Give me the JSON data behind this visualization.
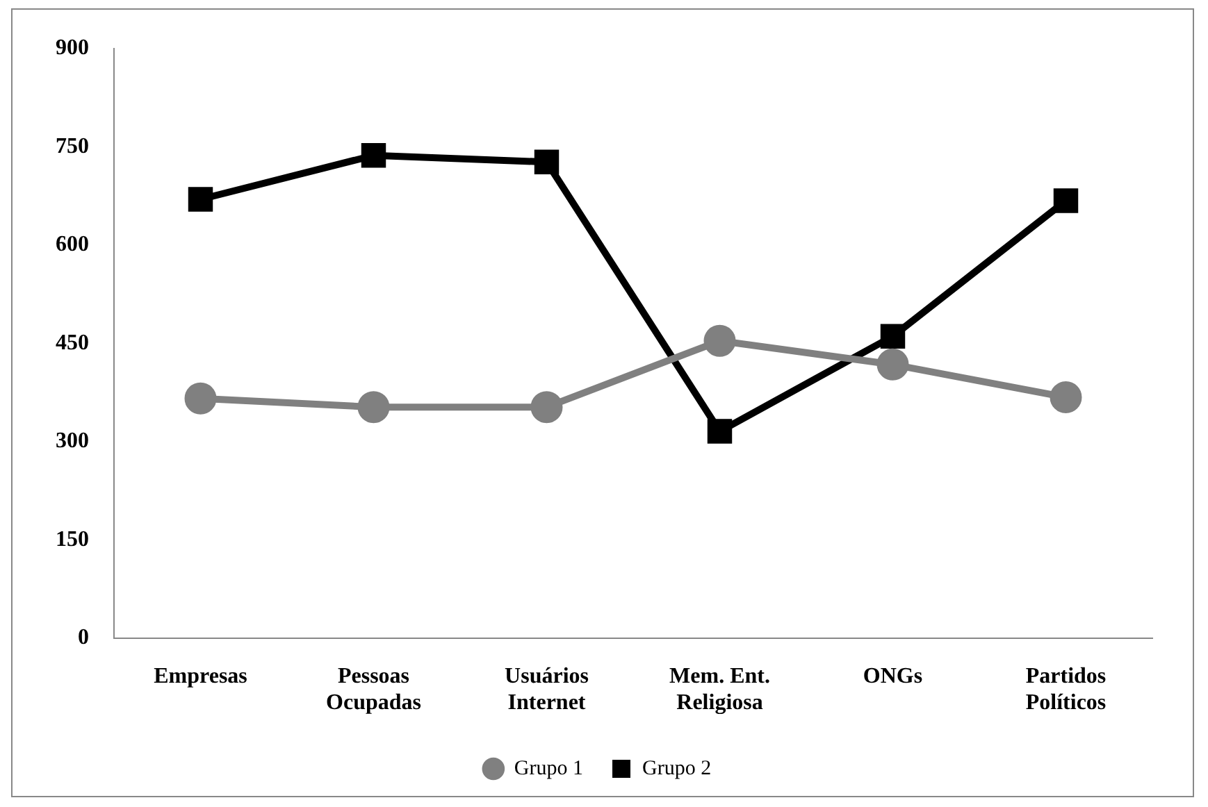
{
  "chart_data": {
    "type": "line",
    "categories": [
      "Empresas",
      "Pessoas Ocupadas",
      "Usuários Internet",
      "Mem. Ent. Religiosa",
      "ONGs",
      "Partidos Políticos"
    ],
    "series": [
      {
        "name": "Grupo 1",
        "color": "#808080",
        "marker": "circle",
        "values": [
          366,
          353,
          353,
          454,
          418,
          368
        ]
      },
      {
        "name": "Grupo 2",
        "color": "#000000",
        "marker": "square",
        "values": [
          670,
          737,
          727,
          316,
          461,
          668
        ]
      }
    ],
    "ylim": [
      0,
      900
    ],
    "yticks": [
      0,
      150,
      300,
      450,
      600,
      750,
      900
    ],
    "grid": false,
    "legend": "bottom",
    "line_style": "solid"
  }
}
